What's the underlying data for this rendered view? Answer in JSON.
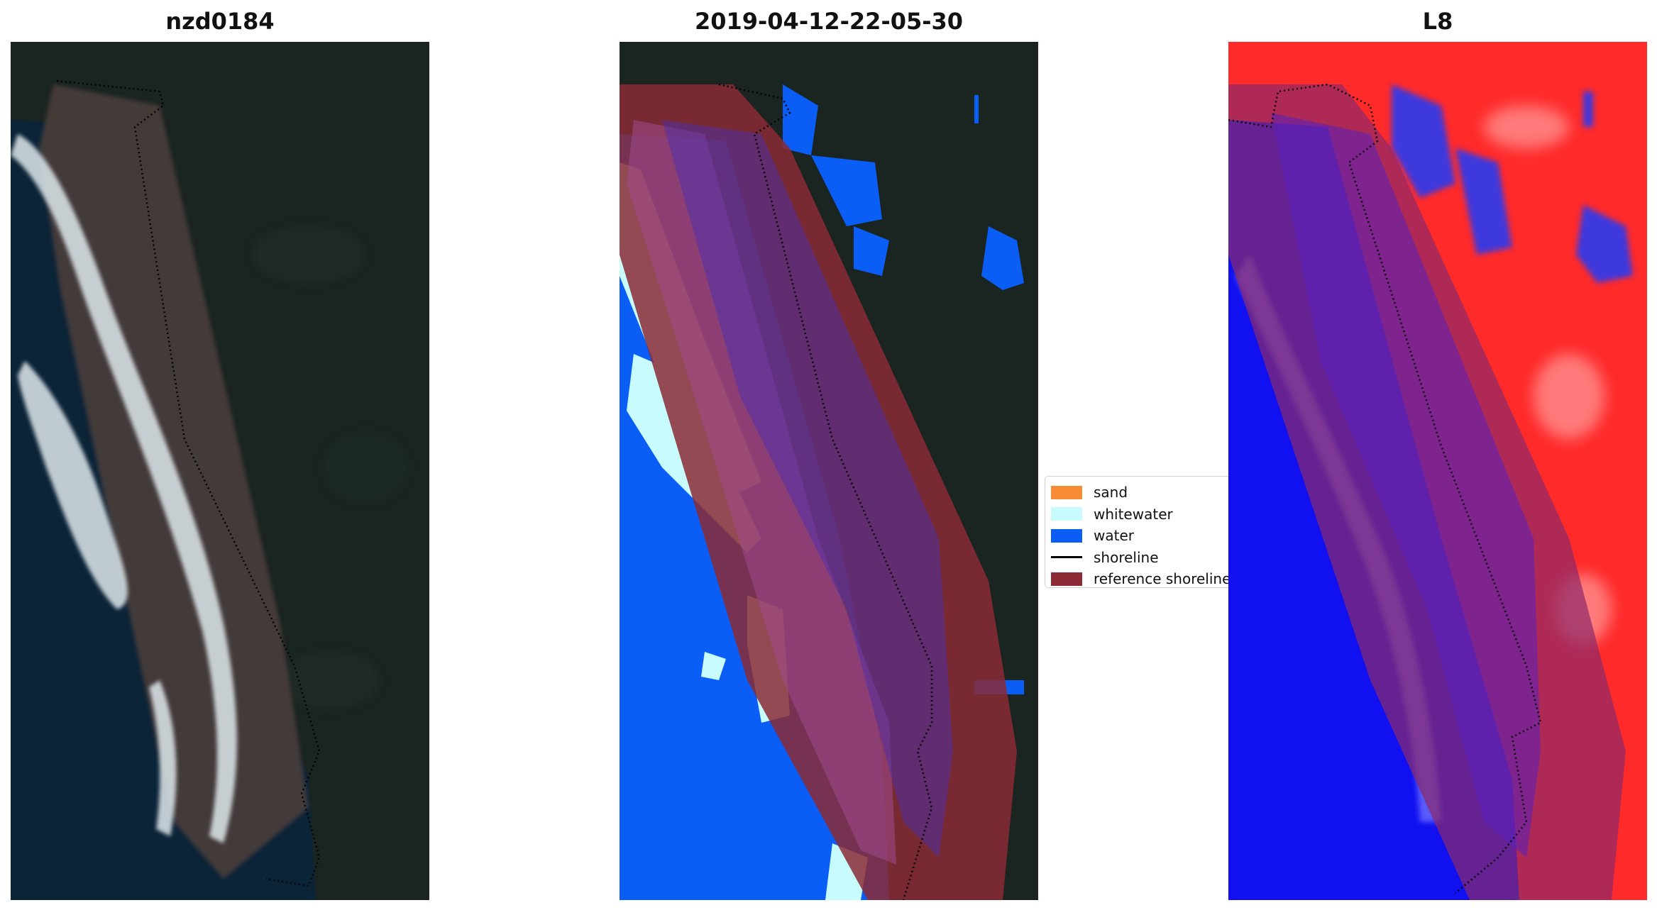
{
  "panels": [
    {
      "title": "nzd0184"
    },
    {
      "title": "2019-04-12-22-05-30"
    },
    {
      "title": "L8"
    }
  ],
  "legend": {
    "items": [
      {
        "label": "sand",
        "color": "#f78c35",
        "kind": "patch"
      },
      {
        "label": "whitewater",
        "color": "#c8fcfc",
        "kind": "patch"
      },
      {
        "label": "water",
        "color": "#0a5ef5",
        "kind": "patch"
      },
      {
        "label": "shoreline",
        "color": "#000000",
        "kind": "line"
      },
      {
        "label": "reference shoreline",
        "color": "#8b2a35",
        "kind": "patch"
      }
    ]
  },
  "colors": {
    "land_dark": "#1a2420",
    "ocean_dark": "#0c2438",
    "beach": "#4a3e3a",
    "surf": "#dfe8ec",
    "water_class": "#0a5ef5",
    "whitewater_class": "#c8fcfc",
    "reference_overlay": "#8b2a35",
    "index_high": "#ff2a2a",
    "index_low": "#1010f0"
  }
}
